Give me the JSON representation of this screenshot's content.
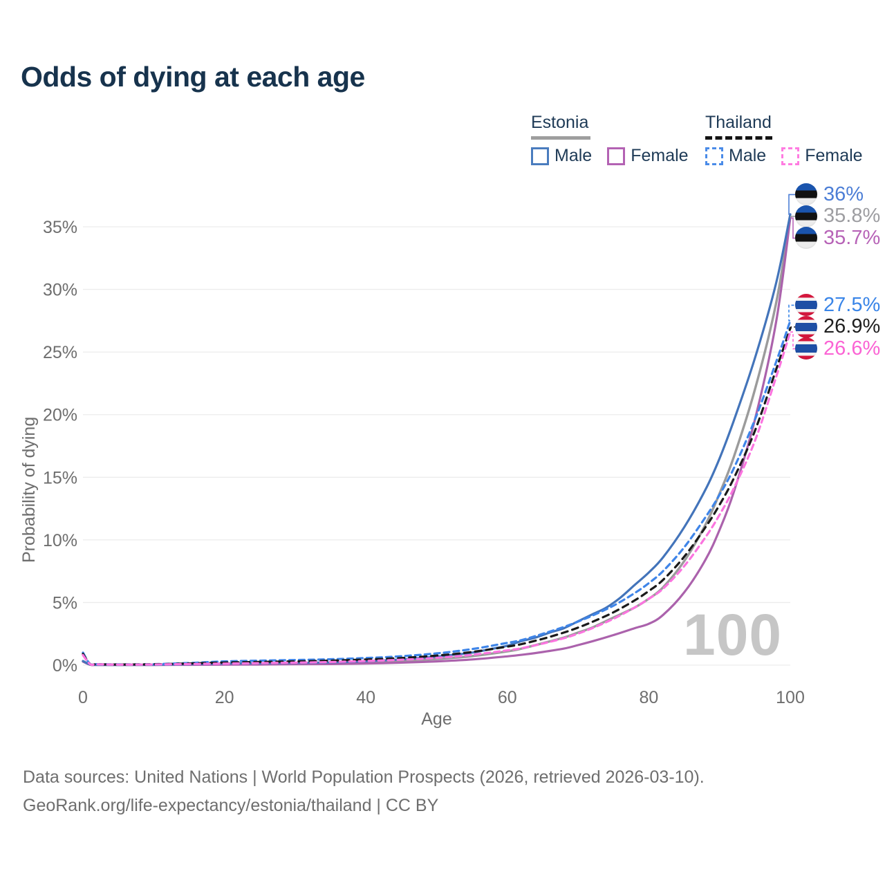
{
  "title": {
    "text": "Odds of dying at each age",
    "color": "#17334d"
  },
  "legend": {
    "groups": [
      {
        "name": "Estonia",
        "line_style": "solid",
        "line_color": "#9e9e9e",
        "line_width": 86,
        "items": [
          {
            "label": "Male",
            "color": "#4a7cbe",
            "style": "solid"
          },
          {
            "label": "Female",
            "color": "#b362b3",
            "style": "solid"
          }
        ]
      },
      {
        "name": "Thailand",
        "line_style": "dashed",
        "line_color": "#141414",
        "line_width": 97,
        "items": [
          {
            "label": "Male",
            "color": "#4a8be8",
            "style": "dashed"
          },
          {
            "label": "Female",
            "color": "#ff7ce1",
            "style": "dashed"
          }
        ]
      }
    ]
  },
  "watermark": "100",
  "footer": {
    "line1": "Data sources: United Nations | World Population Prospects (2026, retrieved 2026-03-10).",
    "line2": "GeoRank.org/life-expectancy/estonia/thailand | CC BY"
  },
  "chart_data": {
    "type": "line",
    "title": "Odds of dying at each age",
    "xlabel": "Age",
    "ylabel": "Probability of dying",
    "xlim": [
      0,
      100
    ],
    "ylim": [
      0,
      37
    ],
    "grid": "horizontal",
    "gridline_color": "#ececec",
    "x_ticks": [
      {
        "v": 0,
        "label": "0"
      },
      {
        "v": 20,
        "label": "20"
      },
      {
        "v": 40,
        "label": "40"
      },
      {
        "v": 60,
        "label": "60"
      },
      {
        "v": 80,
        "label": "80"
      },
      {
        "v": 100,
        "label": "100"
      }
    ],
    "y_ticks": [
      {
        "v": 0,
        "label": "0%"
      },
      {
        "v": 5,
        "label": "5%"
      },
      {
        "v": 10,
        "label": "10%"
      },
      {
        "v": 15,
        "label": "15%"
      },
      {
        "v": 20,
        "label": "20%"
      },
      {
        "v": 25,
        "label": "25%"
      },
      {
        "v": 30,
        "label": "30%"
      },
      {
        "v": 35,
        "label": "35%"
      }
    ],
    "legend_position": "top-right",
    "series": [
      {
        "id": "estonia-both",
        "name": "Estonia (both sexes)",
        "country": "estonia",
        "sex": "both",
        "line": "solid",
        "color": "#9b9b9b",
        "width": 3.4,
        "end_label": "35.8%",
        "end_value": 35.8,
        "label_color": "#9d9da1",
        "points": [
          [
            0,
            0.3
          ],
          [
            1,
            0.045
          ],
          [
            2,
            0.025
          ],
          [
            5,
            0.018
          ],
          [
            10,
            0.025
          ],
          [
            15,
            0.05
          ],
          [
            20,
            0.08
          ],
          [
            25,
            0.1
          ],
          [
            30,
            0.12
          ],
          [
            35,
            0.15
          ],
          [
            40,
            0.22
          ],
          [
            45,
            0.33
          ],
          [
            50,
            0.49
          ],
          [
            55,
            0.72
          ],
          [
            60,
            1.1
          ],
          [
            62,
            1.32
          ],
          [
            65,
            1.75
          ],
          [
            68,
            2.2
          ],
          [
            70,
            2.6
          ],
          [
            72,
            3.0
          ],
          [
            75,
            3.8
          ],
          [
            78,
            4.6
          ],
          [
            80,
            5.3
          ],
          [
            82,
            6.2
          ],
          [
            85,
            8.3
          ],
          [
            88,
            11.2
          ],
          [
            90,
            13.7
          ],
          [
            92,
            16.6
          ],
          [
            95,
            22.0
          ],
          [
            98,
            28.9
          ],
          [
            100,
            35.8
          ]
        ]
      },
      {
        "id": "estonia-female",
        "name": "Estonia Female",
        "country": "estonia",
        "sex": "female",
        "line": "solid",
        "color": "#ab62ac",
        "width": 3.2,
        "end_label": "35.7%",
        "end_value": 35.7,
        "label_color": "#b763b7",
        "points": [
          [
            0,
            0.28
          ],
          [
            1,
            0.04
          ],
          [
            2,
            0.02
          ],
          [
            5,
            0.015
          ],
          [
            10,
            0.02
          ],
          [
            15,
            0.03
          ],
          [
            20,
            0.04
          ],
          [
            25,
            0.05
          ],
          [
            30,
            0.07
          ],
          [
            35,
            0.09
          ],
          [
            40,
            0.13
          ],
          [
            45,
            0.2
          ],
          [
            50,
            0.3
          ],
          [
            55,
            0.45
          ],
          [
            60,
            0.7
          ],
          [
            62,
            0.82
          ],
          [
            65,
            1.05
          ],
          [
            68,
            1.32
          ],
          [
            70,
            1.6
          ],
          [
            72,
            1.9
          ],
          [
            75,
            2.4
          ],
          [
            78,
            2.95
          ],
          [
            80,
            3.3
          ],
          [
            82,
            4.0
          ],
          [
            85,
            5.8
          ],
          [
            88,
            8.4
          ],
          [
            90,
            10.8
          ],
          [
            92,
            13.8
          ],
          [
            95,
            19.6
          ],
          [
            98,
            27.4
          ],
          [
            100,
            35.7
          ]
        ]
      },
      {
        "id": "estonia-male",
        "name": "Estonia Male",
        "country": "estonia",
        "sex": "male",
        "line": "solid",
        "color": "#4374ba",
        "width": 3.2,
        "end_label": "36%",
        "end_value": 36.0,
        "label_color": "#4c7ed6",
        "points": [
          [
            0,
            0.33
          ],
          [
            1,
            0.05
          ],
          [
            2,
            0.03
          ],
          [
            5,
            0.02
          ],
          [
            10,
            0.03
          ],
          [
            15,
            0.07
          ],
          [
            20,
            0.13
          ],
          [
            25,
            0.15
          ],
          [
            30,
            0.18
          ],
          [
            35,
            0.22
          ],
          [
            40,
            0.31
          ],
          [
            45,
            0.46
          ],
          [
            50,
            0.68
          ],
          [
            52,
            0.8
          ],
          [
            55,
            1.0
          ],
          [
            58,
            1.32
          ],
          [
            60,
            1.55
          ],
          [
            62,
            1.92
          ],
          [
            64,
            2.2
          ],
          [
            66,
            2.6
          ],
          [
            68,
            2.95
          ],
          [
            70,
            3.5
          ],
          [
            72,
            4.05
          ],
          [
            74,
            4.6
          ],
          [
            76,
            5.4
          ],
          [
            78,
            6.4
          ],
          [
            80,
            7.4
          ],
          [
            82,
            8.6
          ],
          [
            85,
            11.0
          ],
          [
            88,
            14.0
          ],
          [
            90,
            16.5
          ],
          [
            92,
            19.5
          ],
          [
            95,
            24.5
          ],
          [
            98,
            30.5
          ],
          [
            100,
            36.0
          ]
        ]
      },
      {
        "id": "thailand-male",
        "name": "Thailand Male",
        "country": "thailand",
        "sex": "male",
        "line": "dashed",
        "color": "#3f85e8",
        "width": 3.2,
        "dash": "8 6",
        "end_label": "27.5%",
        "end_value": 27.5,
        "label_color": "#3985e8",
        "points": [
          [
            0,
            1.0
          ],
          [
            1,
            0.1
          ],
          [
            2,
            0.08
          ],
          [
            5,
            0.06
          ],
          [
            10,
            0.08
          ],
          [
            15,
            0.17
          ],
          [
            20,
            0.3
          ],
          [
            25,
            0.36
          ],
          [
            30,
            0.41
          ],
          [
            35,
            0.47
          ],
          [
            40,
            0.57
          ],
          [
            45,
            0.71
          ],
          [
            50,
            0.94
          ],
          [
            55,
            1.28
          ],
          [
            60,
            1.78
          ],
          [
            62,
            2.0
          ],
          [
            65,
            2.5
          ],
          [
            68,
            3.05
          ],
          [
            70,
            3.48
          ],
          [
            72,
            3.95
          ],
          [
            75,
            4.75
          ],
          [
            78,
            5.75
          ],
          [
            80,
            6.55
          ],
          [
            82,
            7.5
          ],
          [
            85,
            9.4
          ],
          [
            88,
            11.8
          ],
          [
            90,
            13.6
          ],
          [
            92,
            15.7
          ],
          [
            95,
            19.6
          ],
          [
            98,
            24.2
          ],
          [
            100,
            27.5
          ]
        ]
      },
      {
        "id": "thailand-both",
        "name": "Thailand (both sexes)",
        "country": "thailand",
        "sex": "both",
        "line": "dashed",
        "color": "#1a1a1a",
        "width": 3.2,
        "dash": "9 7",
        "end_label": "26.9%",
        "end_value": 26.9,
        "label_color": "#1f1f1f",
        "points": [
          [
            0,
            0.9
          ],
          [
            1,
            0.09
          ],
          [
            2,
            0.07
          ],
          [
            5,
            0.05
          ],
          [
            10,
            0.065
          ],
          [
            15,
            0.13
          ],
          [
            20,
            0.21
          ],
          [
            25,
            0.26
          ],
          [
            30,
            0.3
          ],
          [
            35,
            0.36
          ],
          [
            40,
            0.45
          ],
          [
            45,
            0.57
          ],
          [
            50,
            0.76
          ],
          [
            55,
            1.05
          ],
          [
            60,
            1.48
          ],
          [
            62,
            1.68
          ],
          [
            65,
            2.1
          ],
          [
            68,
            2.6
          ],
          [
            70,
            3.0
          ],
          [
            72,
            3.45
          ],
          [
            75,
            4.22
          ],
          [
            78,
            5.17
          ],
          [
            80,
            5.92
          ],
          [
            82,
            6.8
          ],
          [
            85,
            8.65
          ],
          [
            88,
            11.0
          ],
          [
            90,
            12.8
          ],
          [
            92,
            14.9
          ],
          [
            95,
            18.7
          ],
          [
            98,
            23.6
          ],
          [
            100,
            26.9
          ]
        ]
      },
      {
        "id": "thailand-female",
        "name": "Thailand Female",
        "country": "thailand",
        "sex": "female",
        "line": "dashed",
        "color": "#fb74df",
        "width": 3.2,
        "dash": "8 6",
        "end_label": "26.6%",
        "end_value": 26.6,
        "label_color": "#fb63d4",
        "points": [
          [
            0,
            0.8
          ],
          [
            1,
            0.08
          ],
          [
            2,
            0.06
          ],
          [
            5,
            0.04
          ],
          [
            10,
            0.05
          ],
          [
            15,
            0.09
          ],
          [
            20,
            0.12
          ],
          [
            25,
            0.16
          ],
          [
            30,
            0.2
          ],
          [
            35,
            0.25
          ],
          [
            40,
            0.33
          ],
          [
            45,
            0.43
          ],
          [
            50,
            0.58
          ],
          [
            55,
            0.82
          ],
          [
            60,
            1.18
          ],
          [
            62,
            1.35
          ],
          [
            65,
            1.72
          ],
          [
            68,
            2.15
          ],
          [
            70,
            2.52
          ],
          [
            72,
            2.95
          ],
          [
            75,
            3.7
          ],
          [
            78,
            4.6
          ],
          [
            80,
            5.3
          ],
          [
            82,
            6.1
          ],
          [
            85,
            7.9
          ],
          [
            88,
            10.2
          ],
          [
            90,
            12.0
          ],
          [
            92,
            14.1
          ],
          [
            95,
            17.9
          ],
          [
            98,
            23.0
          ],
          [
            100,
            26.6
          ]
        ]
      }
    ]
  }
}
